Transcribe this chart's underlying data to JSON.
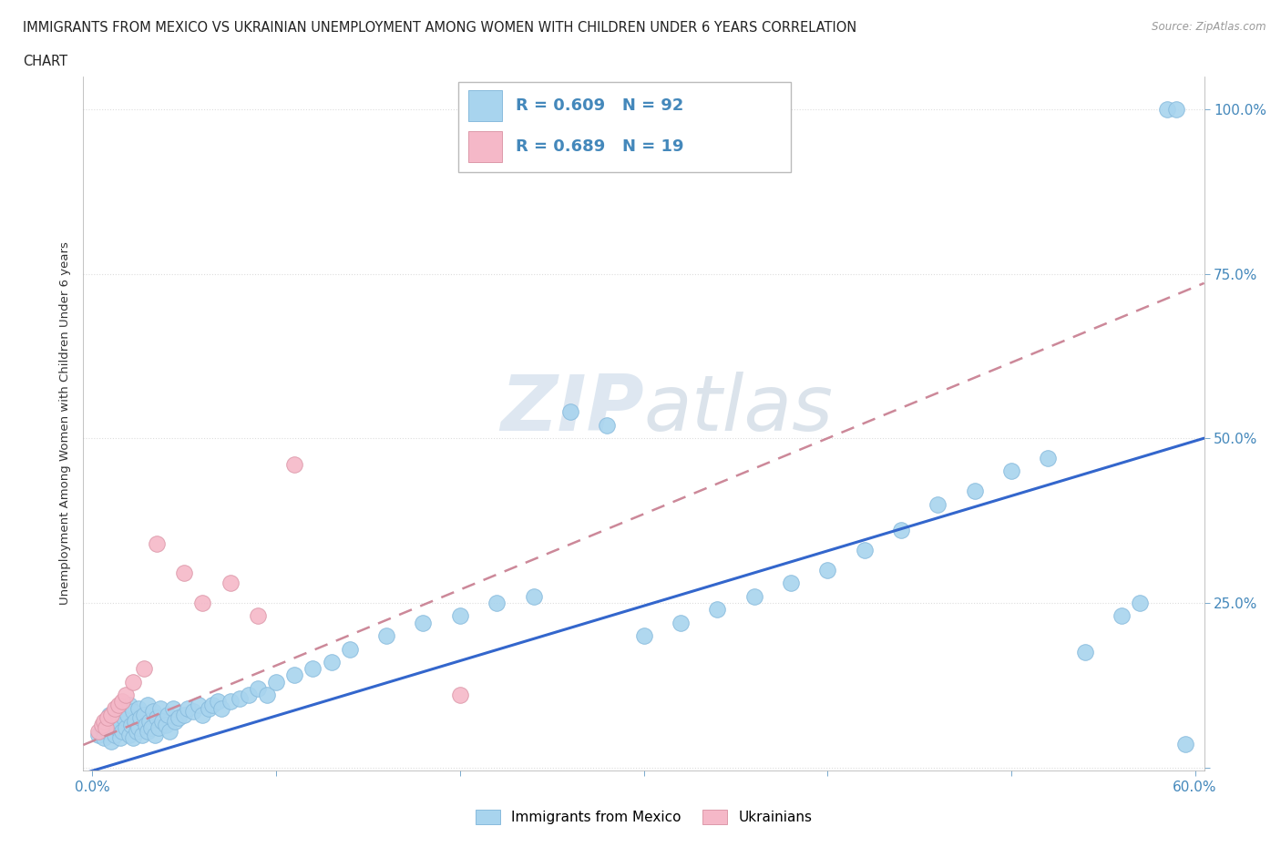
{
  "title_line1": "IMMIGRANTS FROM MEXICO VS UKRAINIAN UNEMPLOYMENT AMONG WOMEN WITH CHILDREN UNDER 6 YEARS CORRELATION",
  "title_line2": "CHART",
  "source": "Source: ZipAtlas.com",
  "ylabel": "Unemployment Among Women with Children Under 6 years",
  "xlim": [
    0.0,
    0.6
  ],
  "ylim": [
    0.0,
    1.05
  ],
  "xticks": [
    0.0,
    0.1,
    0.2,
    0.3,
    0.4,
    0.5,
    0.6
  ],
  "xticklabels": [
    "0.0%",
    "",
    "",
    "",
    "",
    "",
    "60.0%"
  ],
  "yticks": [
    0.0,
    0.25,
    0.5,
    0.75,
    1.0
  ],
  "yticklabels": [
    "",
    "25.0%",
    "50.0%",
    "75.0%",
    "100.0%"
  ],
  "color_mexico": "#A8D4EE",
  "color_ukraine": "#F5B8C8",
  "color_line_mexico": "#3366CC",
  "color_line_ukraine": "#CC8899",
  "axis_color": "#4488BB",
  "title_color": "#222222",
  "source_color": "#999999",
  "watermark_color": "#C8D8E8",
  "mexico_line_slope": 0.835,
  "mexico_line_intercept": -0.005,
  "ukraine_line_slope": 1.15,
  "ukraine_line_intercept": 0.04,
  "mexico_x": [
    0.003,
    0.005,
    0.006,
    0.007,
    0.008,
    0.009,
    0.01,
    0.01,
    0.011,
    0.012,
    0.012,
    0.013,
    0.014,
    0.015,
    0.015,
    0.016,
    0.017,
    0.018,
    0.019,
    0.02,
    0.02,
    0.021,
    0.022,
    0.022,
    0.023,
    0.024,
    0.025,
    0.025,
    0.026,
    0.027,
    0.028,
    0.029,
    0.03,
    0.03,
    0.031,
    0.032,
    0.033,
    0.034,
    0.035,
    0.036,
    0.037,
    0.038,
    0.04,
    0.041,
    0.042,
    0.044,
    0.045,
    0.047,
    0.05,
    0.052,
    0.055,
    0.058,
    0.06,
    0.063,
    0.065,
    0.068,
    0.07,
    0.075,
    0.08,
    0.085,
    0.09,
    0.095,
    0.1,
    0.11,
    0.12,
    0.13,
    0.14,
    0.16,
    0.18,
    0.2,
    0.22,
    0.24,
    0.26,
    0.28,
    0.3,
    0.32,
    0.34,
    0.36,
    0.38,
    0.4,
    0.42,
    0.44,
    0.46,
    0.48,
    0.5,
    0.52,
    0.54,
    0.56,
    0.57,
    0.585,
    0.59,
    0.595
  ],
  "mexico_y": [
    0.05,
    0.06,
    0.045,
    0.07,
    0.055,
    0.08,
    0.04,
    0.075,
    0.065,
    0.05,
    0.085,
    0.06,
    0.07,
    0.045,
    0.09,
    0.055,
    0.075,
    0.06,
    0.08,
    0.05,
    0.095,
    0.065,
    0.045,
    0.085,
    0.07,
    0.055,
    0.09,
    0.06,
    0.075,
    0.05,
    0.08,
    0.065,
    0.055,
    0.095,
    0.07,
    0.06,
    0.085,
    0.05,
    0.075,
    0.06,
    0.09,
    0.07,
    0.065,
    0.08,
    0.055,
    0.09,
    0.07,
    0.075,
    0.08,
    0.09,
    0.085,
    0.095,
    0.08,
    0.09,
    0.095,
    0.1,
    0.09,
    0.1,
    0.105,
    0.11,
    0.12,
    0.11,
    0.13,
    0.14,
    0.15,
    0.16,
    0.18,
    0.2,
    0.22,
    0.23,
    0.25,
    0.26,
    0.54,
    0.52,
    0.2,
    0.22,
    0.24,
    0.26,
    0.28,
    0.3,
    0.33,
    0.36,
    0.4,
    0.42,
    0.45,
    0.47,
    0.175,
    0.23,
    0.25,
    1.0,
    1.0,
    0.035
  ],
  "ukraine_x": [
    0.003,
    0.005,
    0.006,
    0.007,
    0.008,
    0.01,
    0.012,
    0.014,
    0.016,
    0.018,
    0.022,
    0.028,
    0.035,
    0.05,
    0.06,
    0.075,
    0.09,
    0.11,
    0.2
  ],
  "ukraine_y": [
    0.055,
    0.065,
    0.07,
    0.06,
    0.075,
    0.08,
    0.09,
    0.095,
    0.1,
    0.11,
    0.13,
    0.15,
    0.34,
    0.295,
    0.25,
    0.28,
    0.23,
    0.46,
    0.11
  ]
}
